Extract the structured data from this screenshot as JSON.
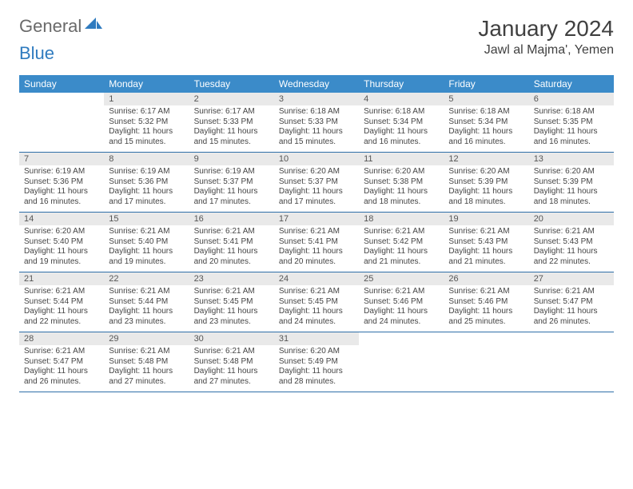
{
  "logo": {
    "gray": "General",
    "blue": "Blue"
  },
  "title": "January 2024",
  "location": "Jawl al Majma', Yemen",
  "colors": {
    "header_bg": "#3b8bc9",
    "header_text": "#ffffff",
    "daynum_bg": "#e9e9e9",
    "row_border": "#2f6fa8",
    "logo_gray": "#6a6a6a",
    "logo_blue": "#2f7bbf",
    "text": "#404040"
  },
  "weekdays": [
    "Sunday",
    "Monday",
    "Tuesday",
    "Wednesday",
    "Thursday",
    "Friday",
    "Saturday"
  ],
  "weeks": [
    [
      null,
      {
        "n": "1",
        "sr": "Sunrise: 6:17 AM",
        "ss": "Sunset: 5:32 PM",
        "d1": "Daylight: 11 hours",
        "d2": "and 15 minutes."
      },
      {
        "n": "2",
        "sr": "Sunrise: 6:17 AM",
        "ss": "Sunset: 5:33 PM",
        "d1": "Daylight: 11 hours",
        "d2": "and 15 minutes."
      },
      {
        "n": "3",
        "sr": "Sunrise: 6:18 AM",
        "ss": "Sunset: 5:33 PM",
        "d1": "Daylight: 11 hours",
        "d2": "and 15 minutes."
      },
      {
        "n": "4",
        "sr": "Sunrise: 6:18 AM",
        "ss": "Sunset: 5:34 PM",
        "d1": "Daylight: 11 hours",
        "d2": "and 16 minutes."
      },
      {
        "n": "5",
        "sr": "Sunrise: 6:18 AM",
        "ss": "Sunset: 5:34 PM",
        "d1": "Daylight: 11 hours",
        "d2": "and 16 minutes."
      },
      {
        "n": "6",
        "sr": "Sunrise: 6:18 AM",
        "ss": "Sunset: 5:35 PM",
        "d1": "Daylight: 11 hours",
        "d2": "and 16 minutes."
      }
    ],
    [
      {
        "n": "7",
        "sr": "Sunrise: 6:19 AM",
        "ss": "Sunset: 5:36 PM",
        "d1": "Daylight: 11 hours",
        "d2": "and 16 minutes."
      },
      {
        "n": "8",
        "sr": "Sunrise: 6:19 AM",
        "ss": "Sunset: 5:36 PM",
        "d1": "Daylight: 11 hours",
        "d2": "and 17 minutes."
      },
      {
        "n": "9",
        "sr": "Sunrise: 6:19 AM",
        "ss": "Sunset: 5:37 PM",
        "d1": "Daylight: 11 hours",
        "d2": "and 17 minutes."
      },
      {
        "n": "10",
        "sr": "Sunrise: 6:20 AM",
        "ss": "Sunset: 5:37 PM",
        "d1": "Daylight: 11 hours",
        "d2": "and 17 minutes."
      },
      {
        "n": "11",
        "sr": "Sunrise: 6:20 AM",
        "ss": "Sunset: 5:38 PM",
        "d1": "Daylight: 11 hours",
        "d2": "and 18 minutes."
      },
      {
        "n": "12",
        "sr": "Sunrise: 6:20 AM",
        "ss": "Sunset: 5:39 PM",
        "d1": "Daylight: 11 hours",
        "d2": "and 18 minutes."
      },
      {
        "n": "13",
        "sr": "Sunrise: 6:20 AM",
        "ss": "Sunset: 5:39 PM",
        "d1": "Daylight: 11 hours",
        "d2": "and 18 minutes."
      }
    ],
    [
      {
        "n": "14",
        "sr": "Sunrise: 6:20 AM",
        "ss": "Sunset: 5:40 PM",
        "d1": "Daylight: 11 hours",
        "d2": "and 19 minutes."
      },
      {
        "n": "15",
        "sr": "Sunrise: 6:21 AM",
        "ss": "Sunset: 5:40 PM",
        "d1": "Daylight: 11 hours",
        "d2": "and 19 minutes."
      },
      {
        "n": "16",
        "sr": "Sunrise: 6:21 AM",
        "ss": "Sunset: 5:41 PM",
        "d1": "Daylight: 11 hours",
        "d2": "and 20 minutes."
      },
      {
        "n": "17",
        "sr": "Sunrise: 6:21 AM",
        "ss": "Sunset: 5:41 PM",
        "d1": "Daylight: 11 hours",
        "d2": "and 20 minutes."
      },
      {
        "n": "18",
        "sr": "Sunrise: 6:21 AM",
        "ss": "Sunset: 5:42 PM",
        "d1": "Daylight: 11 hours",
        "d2": "and 21 minutes."
      },
      {
        "n": "19",
        "sr": "Sunrise: 6:21 AM",
        "ss": "Sunset: 5:43 PM",
        "d1": "Daylight: 11 hours",
        "d2": "and 21 minutes."
      },
      {
        "n": "20",
        "sr": "Sunrise: 6:21 AM",
        "ss": "Sunset: 5:43 PM",
        "d1": "Daylight: 11 hours",
        "d2": "and 22 minutes."
      }
    ],
    [
      {
        "n": "21",
        "sr": "Sunrise: 6:21 AM",
        "ss": "Sunset: 5:44 PM",
        "d1": "Daylight: 11 hours",
        "d2": "and 22 minutes."
      },
      {
        "n": "22",
        "sr": "Sunrise: 6:21 AM",
        "ss": "Sunset: 5:44 PM",
        "d1": "Daylight: 11 hours",
        "d2": "and 23 minutes."
      },
      {
        "n": "23",
        "sr": "Sunrise: 6:21 AM",
        "ss": "Sunset: 5:45 PM",
        "d1": "Daylight: 11 hours",
        "d2": "and 23 minutes."
      },
      {
        "n": "24",
        "sr": "Sunrise: 6:21 AM",
        "ss": "Sunset: 5:45 PM",
        "d1": "Daylight: 11 hours",
        "d2": "and 24 minutes."
      },
      {
        "n": "25",
        "sr": "Sunrise: 6:21 AM",
        "ss": "Sunset: 5:46 PM",
        "d1": "Daylight: 11 hours",
        "d2": "and 24 minutes."
      },
      {
        "n": "26",
        "sr": "Sunrise: 6:21 AM",
        "ss": "Sunset: 5:46 PM",
        "d1": "Daylight: 11 hours",
        "d2": "and 25 minutes."
      },
      {
        "n": "27",
        "sr": "Sunrise: 6:21 AM",
        "ss": "Sunset: 5:47 PM",
        "d1": "Daylight: 11 hours",
        "d2": "and 26 minutes."
      }
    ],
    [
      {
        "n": "28",
        "sr": "Sunrise: 6:21 AM",
        "ss": "Sunset: 5:47 PM",
        "d1": "Daylight: 11 hours",
        "d2": "and 26 minutes."
      },
      {
        "n": "29",
        "sr": "Sunrise: 6:21 AM",
        "ss": "Sunset: 5:48 PM",
        "d1": "Daylight: 11 hours",
        "d2": "and 27 minutes."
      },
      {
        "n": "30",
        "sr": "Sunrise: 6:21 AM",
        "ss": "Sunset: 5:48 PM",
        "d1": "Daylight: 11 hours",
        "d2": "and 27 minutes."
      },
      {
        "n": "31",
        "sr": "Sunrise: 6:20 AM",
        "ss": "Sunset: 5:49 PM",
        "d1": "Daylight: 11 hours",
        "d2": "and 28 minutes."
      },
      null,
      null,
      null
    ]
  ]
}
